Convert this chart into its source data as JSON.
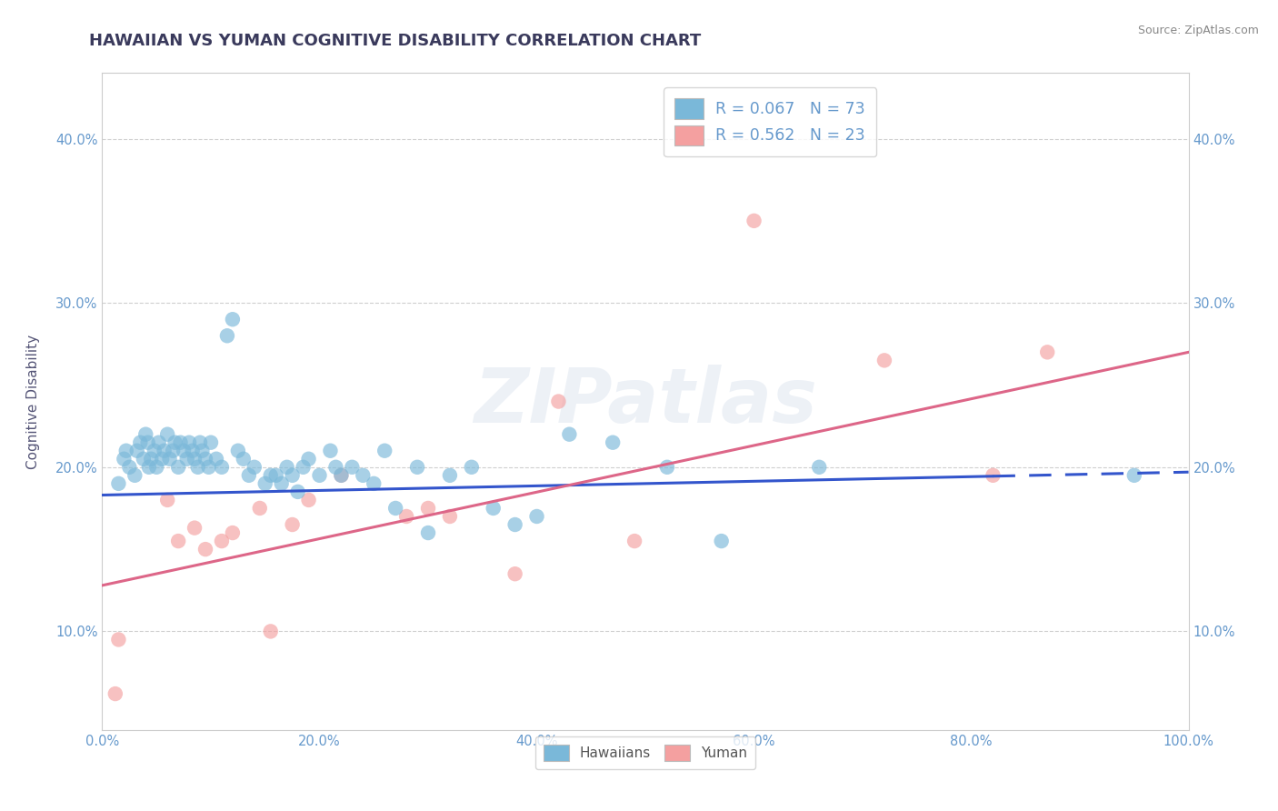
{
  "title": "HAWAIIAN VS YUMAN COGNITIVE DISABILITY CORRELATION CHART",
  "source_text": "Source: ZipAtlas.com",
  "ylabel": "Cognitive Disability",
  "xlim": [
    0.0,
    1.0
  ],
  "ylim": [
    0.04,
    0.44
  ],
  "x_tick_labels": [
    "0.0%",
    "20.0%",
    "40.0%",
    "60.0%",
    "80.0%",
    "100.0%"
  ],
  "x_tick_values": [
    0.0,
    0.2,
    0.4,
    0.6,
    0.8,
    1.0
  ],
  "y_tick_labels": [
    "10.0%",
    "20.0%",
    "30.0%",
    "40.0%"
  ],
  "y_tick_values": [
    0.1,
    0.2,
    0.3,
    0.4
  ],
  "hawaiian_color": "#7ab8d9",
  "yuman_color": "#f4a0a0",
  "legend_hawaiians_label": "Hawaiians",
  "legend_yuman_label": "Yuman",
  "r_hawaiian": 0.067,
  "n_hawaiian": 73,
  "r_yuman": 0.562,
  "n_yuman": 23,
  "watermark": "ZIPatlas",
  "title_color": "#3a3a5c",
  "axis_label_color": "#555577",
  "tick_color": "#6699cc",
  "regression_blue": "#3355cc",
  "regression_pink": "#dd6688",
  "background_color": "#ffffff",
  "grid_color": "#bbbbbb",
  "title_fontsize": 13,
  "label_fontsize": 11,
  "tick_fontsize": 10.5,
  "hawaiian_scatter_x": [
    0.015,
    0.02,
    0.022,
    0.025,
    0.03,
    0.032,
    0.035,
    0.038,
    0.04,
    0.042,
    0.043,
    0.045,
    0.048,
    0.05,
    0.052,
    0.055,
    0.057,
    0.06,
    0.062,
    0.065,
    0.067,
    0.07,
    0.072,
    0.075,
    0.078,
    0.08,
    0.083,
    0.085,
    0.088,
    0.09,
    0.092,
    0.095,
    0.098,
    0.1,
    0.105,
    0.11,
    0.115,
    0.12,
    0.125,
    0.13,
    0.135,
    0.14,
    0.15,
    0.155,
    0.16,
    0.165,
    0.17,
    0.175,
    0.18,
    0.185,
    0.19,
    0.2,
    0.21,
    0.215,
    0.22,
    0.23,
    0.24,
    0.25,
    0.26,
    0.27,
    0.29,
    0.3,
    0.32,
    0.34,
    0.36,
    0.38,
    0.4,
    0.43,
    0.47,
    0.52,
    0.57,
    0.66,
    0.95
  ],
  "hawaiian_scatter_y": [
    0.19,
    0.205,
    0.21,
    0.2,
    0.195,
    0.21,
    0.215,
    0.205,
    0.22,
    0.215,
    0.2,
    0.205,
    0.21,
    0.2,
    0.215,
    0.205,
    0.21,
    0.22,
    0.205,
    0.21,
    0.215,
    0.2,
    0.215,
    0.21,
    0.205,
    0.215,
    0.21,
    0.205,
    0.2,
    0.215,
    0.21,
    0.205,
    0.2,
    0.215,
    0.205,
    0.2,
    0.28,
    0.29,
    0.21,
    0.205,
    0.195,
    0.2,
    0.19,
    0.195,
    0.195,
    0.19,
    0.2,
    0.195,
    0.185,
    0.2,
    0.205,
    0.195,
    0.21,
    0.2,
    0.195,
    0.2,
    0.195,
    0.19,
    0.21,
    0.175,
    0.2,
    0.16,
    0.195,
    0.2,
    0.175,
    0.165,
    0.17,
    0.22,
    0.215,
    0.2,
    0.155,
    0.2,
    0.195
  ],
  "yuman_scatter_x": [
    0.012,
    0.015,
    0.06,
    0.07,
    0.085,
    0.095,
    0.11,
    0.12,
    0.145,
    0.155,
    0.175,
    0.19,
    0.22,
    0.28,
    0.3,
    0.32,
    0.38,
    0.42,
    0.49,
    0.6,
    0.72,
    0.82,
    0.87
  ],
  "yuman_scatter_y": [
    0.062,
    0.095,
    0.18,
    0.155,
    0.163,
    0.15,
    0.155,
    0.16,
    0.175,
    0.1,
    0.165,
    0.18,
    0.195,
    0.17,
    0.175,
    0.17,
    0.135,
    0.24,
    0.155,
    0.35,
    0.265,
    0.195,
    0.27
  ],
  "hawaiian_line_solid_end": 0.82,
  "hawaiian_line_x0": 0.0,
  "hawaiian_line_y0": 0.183,
  "hawaiian_line_x1": 1.0,
  "hawaiian_line_y1": 0.197,
  "yuman_line_x0": 0.0,
  "yuman_line_y0": 0.128,
  "yuman_line_x1": 1.0,
  "yuman_line_y1": 0.27
}
